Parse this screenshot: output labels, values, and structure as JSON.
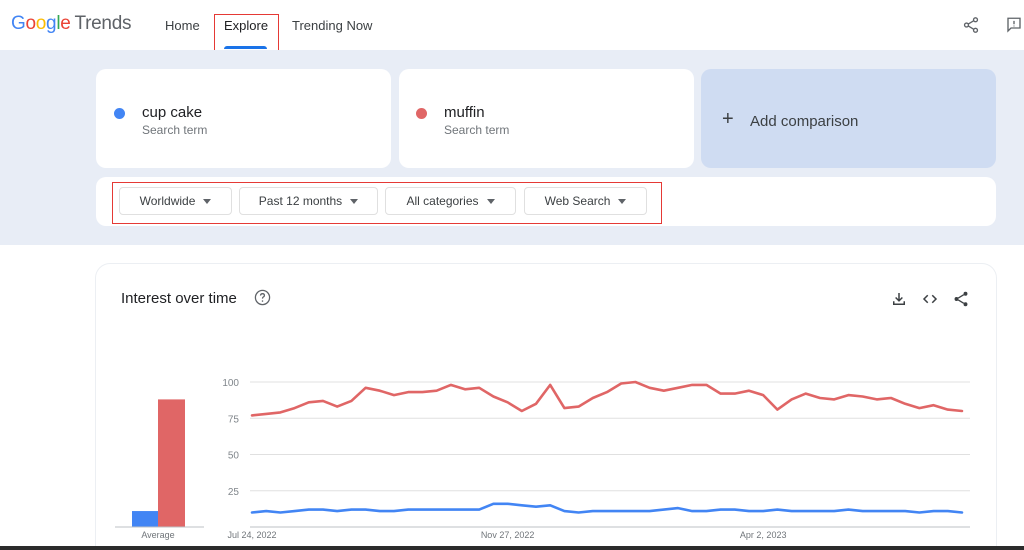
{
  "header": {
    "logo_google": [
      "G",
      "o",
      "o",
      "g",
      "l",
      "e"
    ],
    "logo_trends": "Trends",
    "nav": {
      "home": "Home",
      "explore": "Explore",
      "trending": "Trending Now"
    }
  },
  "terms": [
    {
      "name": "cup cake",
      "sub": "Search term",
      "color": "#4285F4"
    },
    {
      "name": "muffin",
      "sub": "Search term",
      "color": "#E06666"
    }
  ],
  "add_comparison": {
    "plus": "+",
    "label": "Add comparison"
  },
  "filters": [
    {
      "label": "Worldwide"
    },
    {
      "label": "Past 12 months"
    },
    {
      "label": "All categories"
    },
    {
      "label": "Web Search"
    }
  ],
  "chart_panel": {
    "title": "Interest over time",
    "average_label": "Average",
    "icons": [
      "download-icon",
      "embed-code-icon",
      "share-icon"
    ]
  },
  "chart_data": {
    "type": "line",
    "xlabel": "",
    "ylabel": "",
    "ylim": [
      0,
      100
    ],
    "yticks": [
      25,
      50,
      75,
      100
    ],
    "x_tick_labels": [
      "Jul 24, 2022",
      "Nov 27, 2022",
      "Apr 2, 2023"
    ],
    "x_tick_index": [
      0,
      18,
      36
    ],
    "average": {
      "cup cake": 11,
      "muffin": 88
    },
    "series": [
      {
        "name": "muffin",
        "color": "#E06666",
        "values": [
          77,
          78,
          79,
          82,
          86,
          87,
          83,
          87,
          96,
          94,
          91,
          93,
          93,
          94,
          98,
          95,
          96,
          90,
          86,
          80,
          85,
          98,
          82,
          83,
          89,
          93,
          99,
          100,
          96,
          94,
          96,
          98,
          98,
          92,
          92,
          94,
          91,
          81,
          88,
          92,
          89,
          88,
          91,
          90,
          88,
          89,
          85,
          82,
          84,
          81,
          80
        ]
      },
      {
        "name": "cup cake",
        "color": "#4285F4",
        "values": [
          10,
          11,
          10,
          11,
          12,
          12,
          11,
          12,
          12,
          11,
          11,
          12,
          12,
          12,
          12,
          12,
          12,
          16,
          16,
          15,
          14,
          15,
          11,
          10,
          11,
          11,
          11,
          11,
          11,
          12,
          13,
          11,
          11,
          12,
          12,
          11,
          11,
          12,
          11,
          11,
          11,
          11,
          12,
          11,
          11,
          11,
          11,
          10,
          11,
          11,
          10
        ]
      }
    ]
  }
}
